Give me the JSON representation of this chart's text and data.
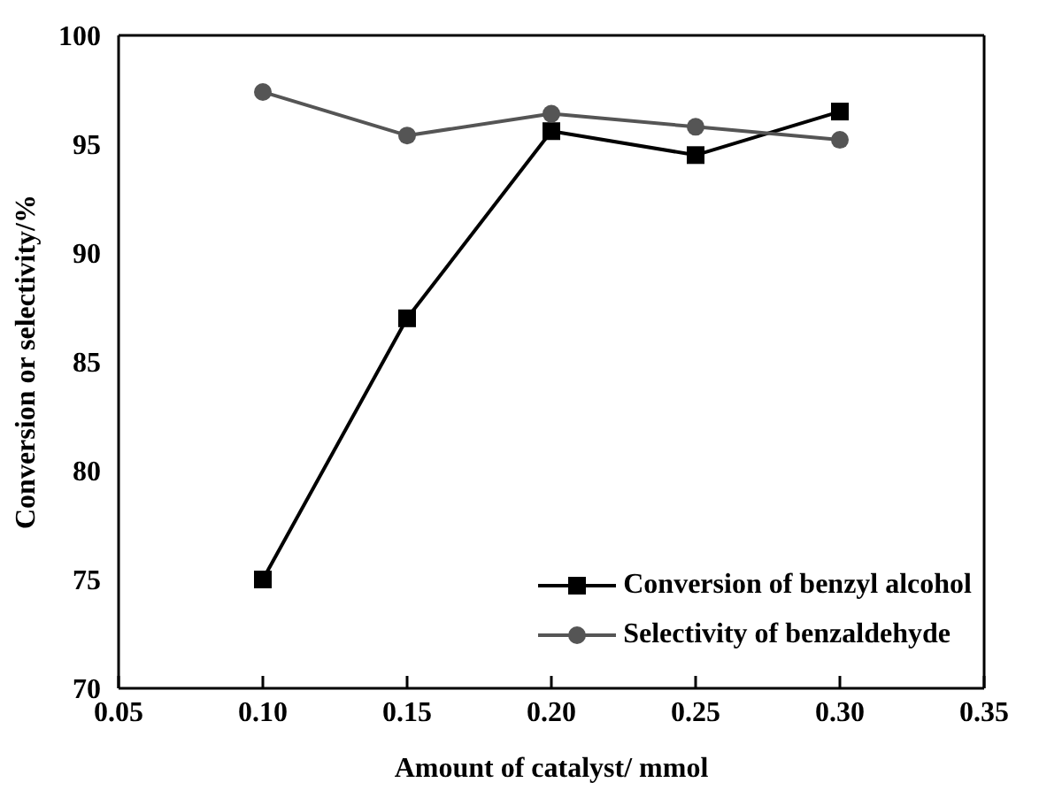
{
  "chart_data": {
    "type": "line",
    "xlabel": "Amount of catalyst/ mmol",
    "ylabel": "Conversion or selectivity/%",
    "x": [
      0.1,
      0.15,
      0.2,
      0.25,
      0.3
    ],
    "series": [
      {
        "name": "Conversion of benzyl alcohol",
        "color": "#000000",
        "marker": "square",
        "values": [
          75,
          87.0,
          95.6,
          94.5,
          96.5
        ]
      },
      {
        "name": "Selectivity of benzaldehyde",
        "color": "#555555",
        "marker": "circle",
        "values": [
          97.4,
          95.4,
          96.4,
          95.8,
          95.2
        ]
      }
    ],
    "xlim": [
      0.05,
      0.35
    ],
    "xticks": [
      {
        "value": 0.05,
        "label": "0.05"
      },
      {
        "value": 0.1,
        "label": "0.10"
      },
      {
        "value": 0.15,
        "label": "0.15"
      },
      {
        "value": 0.2,
        "label": "0.20"
      },
      {
        "value": 0.25,
        "label": "0.25"
      },
      {
        "value": 0.3,
        "label": "0.30"
      },
      {
        "value": 0.35,
        "label": "0.35"
      }
    ],
    "ylim": [
      70,
      100
    ],
    "yticks": [
      70,
      75,
      80,
      85,
      90,
      95,
      100
    ],
    "grid": false,
    "legend": "bottom right",
    "line_style": "solid"
  }
}
